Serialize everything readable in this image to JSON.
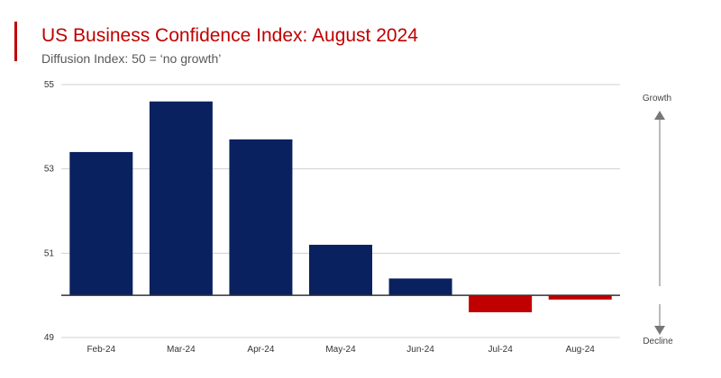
{
  "header": {
    "title": "US Business Confidence Index: August 2024",
    "subtitle": "Diffusion Index: 50 = ‘no growth’"
  },
  "annotations": {
    "growth": "Growth",
    "decline": "Decline"
  },
  "colors": {
    "accent": "#c00000",
    "positive": "#0a2160",
    "negative": "#c00000",
    "grid": "#d0d0d0",
    "baseline": "#333333"
  },
  "chart_data": {
    "type": "bar",
    "title": "US Business Confidence Index: August 2024",
    "subtitle": "Diffusion Index: 50 = ‘no growth’",
    "categories": [
      "Feb-24",
      "Mar-24",
      "Apr-24",
      "May-24",
      "Jun-24",
      "Jul-24",
      "Aug-24"
    ],
    "values": [
      53.4,
      54.6,
      53.7,
      51.2,
      50.4,
      49.6,
      49.9
    ],
    "baseline": 50,
    "ylim": [
      49,
      55
    ],
    "yticks": [
      49,
      51,
      53,
      55
    ],
    "grid": true,
    "legend": "none"
  }
}
